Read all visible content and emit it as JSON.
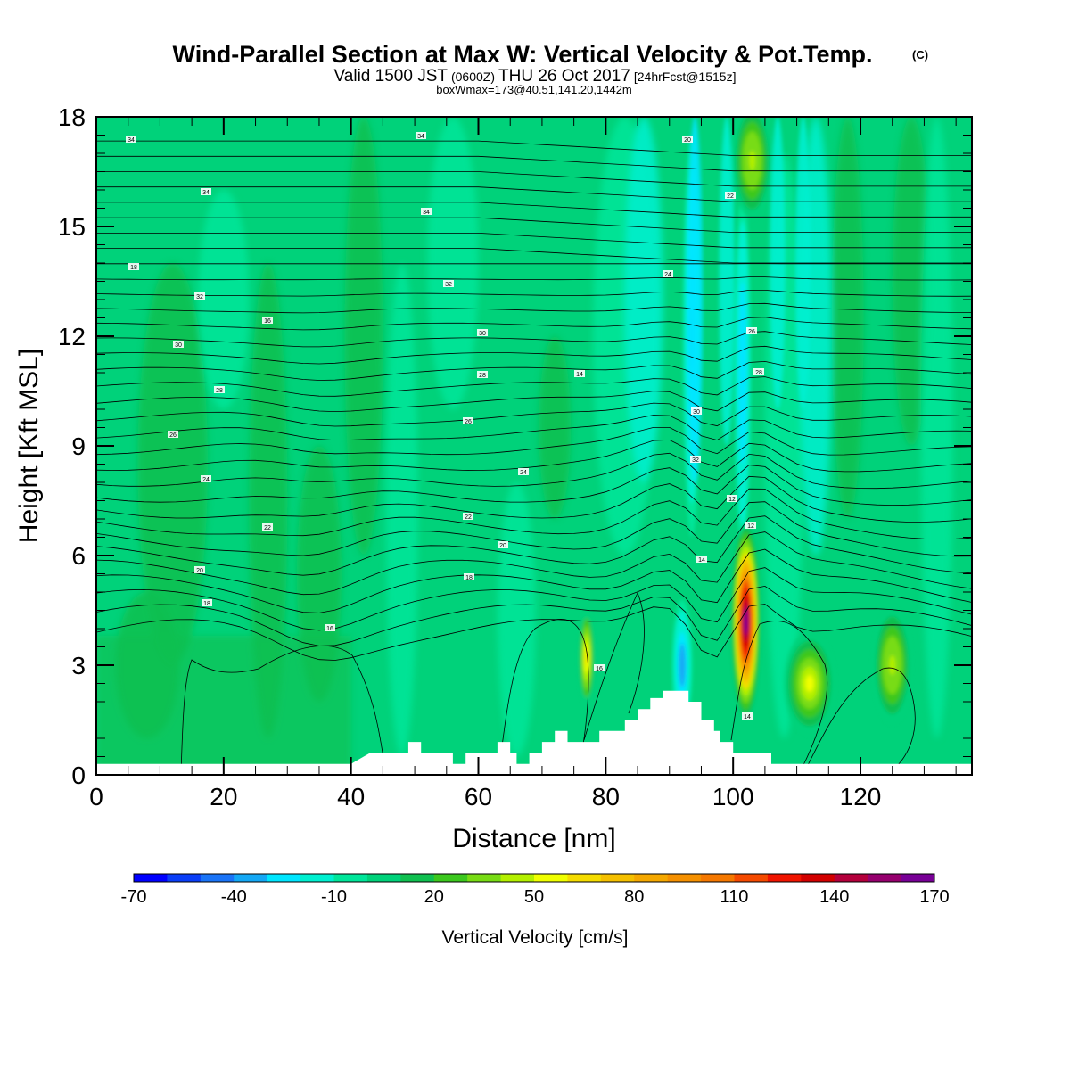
{
  "title": {
    "main": "Wind-Parallel Section at Max W: Vertical Velocity & Pot.Temp.",
    "copyright": "(C)",
    "valid_prefix": "Valid 1500 JST",
    "valid_utc": "(0600Z)",
    "valid_date": "THU 26 Oct 2017",
    "forecast": "[24hrFcst@1515z]",
    "box_info": "boxWmax=173@40.51,141.20,1442m"
  },
  "chart_data": {
    "type": "heatmap",
    "title": "Wind-Parallel Section at Max W: Vertical Velocity & Pot.Temp.",
    "xlabel": "Distance [nm]",
    "ylabel": "Height [Kft MSL]",
    "xlim": [
      0,
      137.5
    ],
    "ylim": [
      0,
      18
    ],
    "x_ticks": [
      0,
      20,
      40,
      60,
      80,
      100,
      120
    ],
    "y_ticks": [
      0,
      3,
      6,
      9,
      12,
      15,
      18
    ],
    "grid": false,
    "colorbar": {
      "label": "Vertical Velocity [cm/s]",
      "levels": [
        -70,
        -60,
        -50,
        -40,
        -30,
        -20,
        -10,
        0,
        10,
        20,
        30,
        40,
        50,
        60,
        70,
        80,
        90,
        100,
        110,
        120,
        130,
        140,
        150,
        160,
        170,
        180
      ],
      "tick_labels": [
        -70,
        -40,
        -10,
        20,
        50,
        80,
        110,
        140,
        170
      ],
      "colors": [
        "#0000ff",
        "#0a3ef7",
        "#1a74f7",
        "#14a8f5",
        "#00e6ff",
        "#00f0d0",
        "#00e69a",
        "#00d27a",
        "#10c050",
        "#3cc81e",
        "#78dc14",
        "#b4f000",
        "#f0ff00",
        "#f5dc00",
        "#f5c000",
        "#f5a800",
        "#f59000",
        "#f57800",
        "#f54a00",
        "#f01400",
        "#d20000",
        "#b4003c",
        "#96006e",
        "#780096"
      ]
    },
    "updrafts": [
      {
        "x": 102,
        "z": 4.2,
        "w": 173
      },
      {
        "x": 77,
        "z": 3.2,
        "w": 60
      },
      {
        "x": 112,
        "z": 2.5,
        "w": 50
      },
      {
        "x": 125,
        "z": 3.0,
        "w": 45
      },
      {
        "x": 103,
        "z": 16.8,
        "w": 45
      }
    ],
    "downdrafts": [
      {
        "x": 92,
        "z": 3.0,
        "w": -40
      },
      {
        "x": 93.5,
        "z": 12,
        "w": -35
      },
      {
        "x": 101.5,
        "z": 11,
        "w": -30
      }
    ],
    "theta_contour_labels": [
      "34",
      "34",
      "34",
      "34",
      "32",
      "32",
      "30",
      "30",
      "28",
      "28",
      "26",
      "26",
      "24",
      "24",
      "22",
      "22",
      "20",
      "20",
      "18",
      "18",
      "16",
      "16",
      "14",
      "14",
      "12",
      "12",
      "32",
      "30",
      "28",
      "26",
      "24",
      "22",
      "20",
      "18",
      "16",
      "14"
    ],
    "terrain": [
      [
        0,
        0.3
      ],
      [
        40,
        0.3
      ],
      [
        43,
        0.6
      ],
      [
        49,
        0.6
      ],
      [
        49,
        0.9
      ],
      [
        51,
        0.9
      ],
      [
        51,
        0.6
      ],
      [
        56,
        0.6
      ],
      [
        56,
        0.3
      ],
      [
        58,
        0.3
      ],
      [
        58,
        0.6
      ],
      [
        63,
        0.6
      ],
      [
        63,
        0.9
      ],
      [
        65,
        0.9
      ],
      [
        65,
        0.6
      ],
      [
        66,
        0.6
      ],
      [
        66,
        0.3
      ],
      [
        68,
        0.3
      ],
      [
        68,
        0.6
      ],
      [
        70,
        0.6
      ],
      [
        70,
        0.9
      ],
      [
        72,
        0.9
      ],
      [
        72,
        1.2
      ],
      [
        74,
        1.2
      ],
      [
        74,
        0.9
      ],
      [
        79,
        0.9
      ],
      [
        79,
        1.2
      ],
      [
        83,
        1.2
      ],
      [
        83,
        1.5
      ],
      [
        85,
        1.5
      ],
      [
        85,
        1.8
      ],
      [
        87,
        1.8
      ],
      [
        87,
        2.1
      ],
      [
        89,
        2.1
      ],
      [
        89,
        2.3
      ],
      [
        93,
        2.3
      ],
      [
        93,
        2.0
      ],
      [
        95,
        2.0
      ],
      [
        95,
        1.5
      ],
      [
        97,
        1.5
      ],
      [
        97,
        1.2
      ],
      [
        98,
        1.2
      ],
      [
        98,
        0.9
      ],
      [
        100,
        0.9
      ],
      [
        100,
        0.6
      ],
      [
        106,
        0.6
      ],
      [
        106,
        0.3
      ],
      [
        137.5,
        0.3
      ]
    ]
  }
}
